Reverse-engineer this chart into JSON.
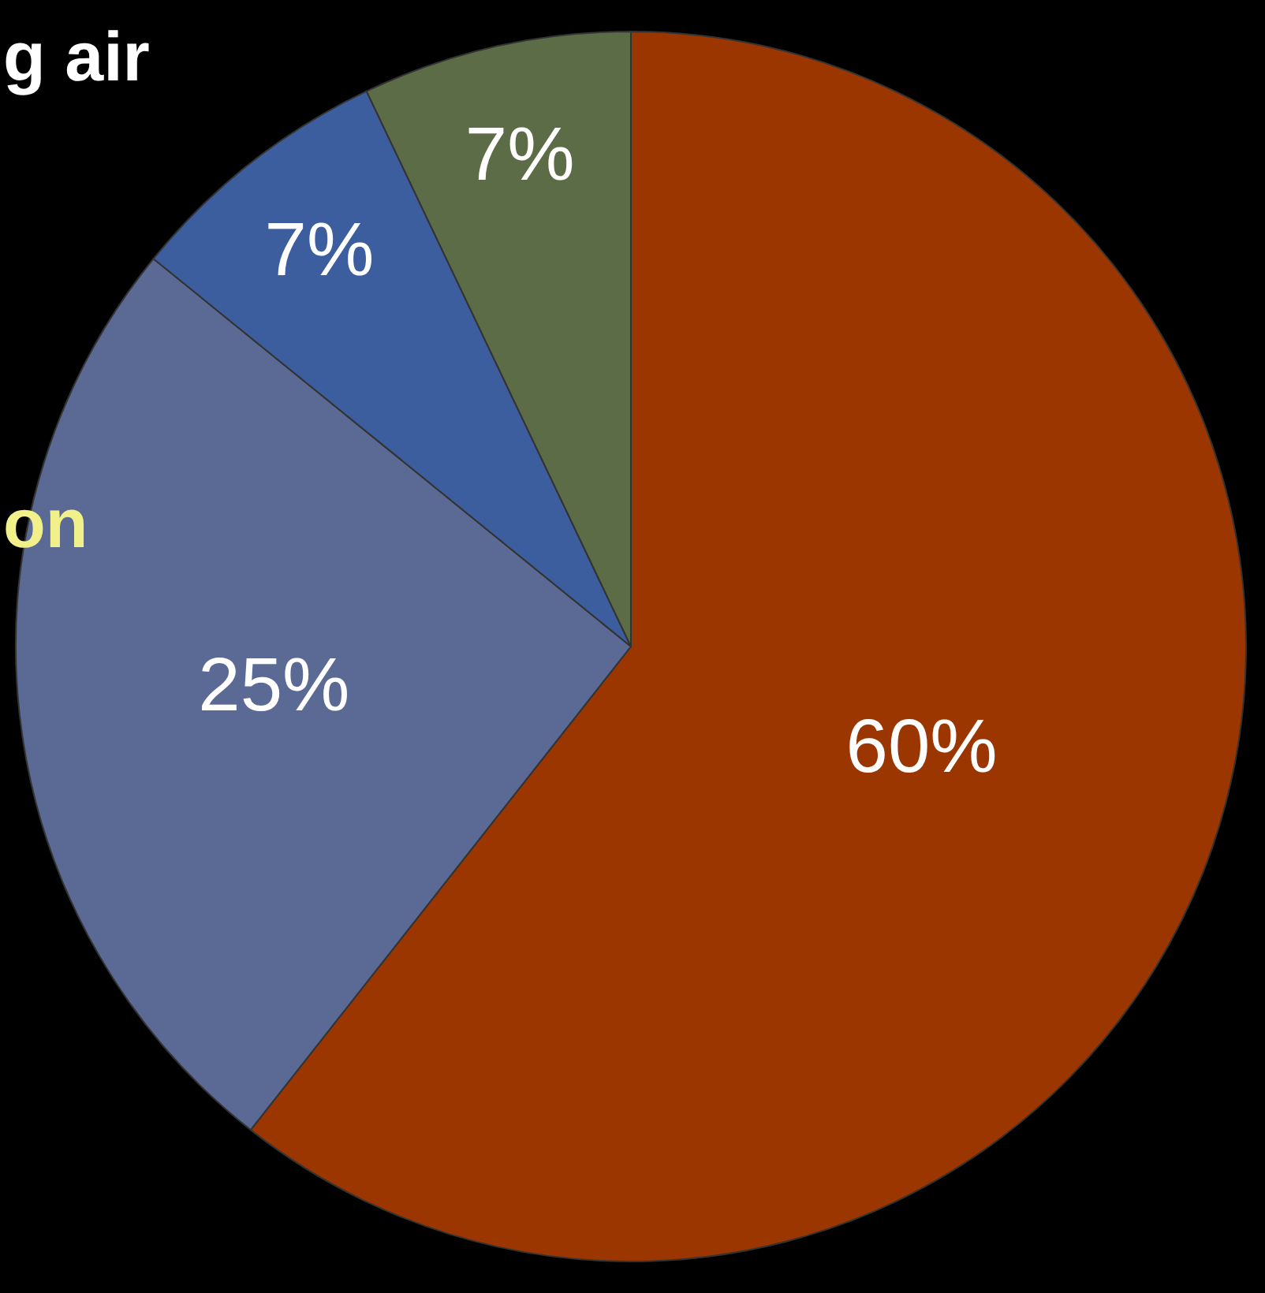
{
  "chart_data": {
    "type": "pie",
    "categories": [
      null,
      null,
      null,
      null
    ],
    "values": [
      60,
      25,
      7,
      7
    ],
    "value_labels": [
      "60%",
      "25%",
      "7%",
      "7%"
    ],
    "colors": [
      "#9c3600",
      "#5a6a94",
      "#3c5e9e",
      "#5b6c46"
    ],
    "legend": false,
    "annotations": [
      "g air",
      "on"
    ]
  }
}
